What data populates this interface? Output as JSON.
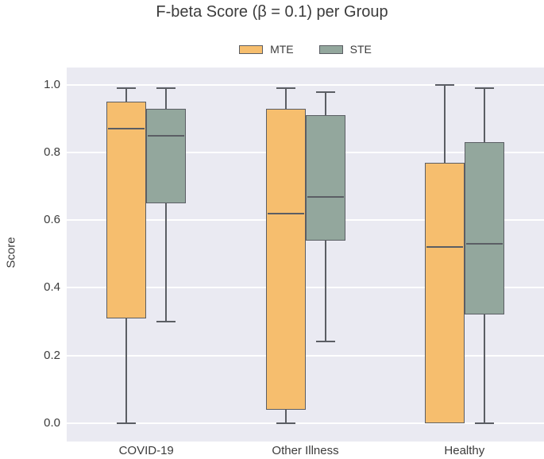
{
  "title": "F-beta Score (β = 0.1) per Group",
  "chart_data": {
    "type": "boxplot",
    "title": "F-beta Score (β = 0.1) per Group",
    "ylabel": "Score",
    "xlabel": "",
    "categories": [
      "COVID-19",
      "Other Illness",
      "Healthy"
    ],
    "series": [
      {
        "name": "MTE",
        "color": "#F6BE6E",
        "boxes": [
          {
            "category": "COVID-19",
            "min": 0.0,
            "q1": 0.31,
            "median": 0.87,
            "q3": 0.95,
            "max": 0.99
          },
          {
            "category": "Other Illness",
            "min": 0.0,
            "q1": 0.04,
            "median": 0.62,
            "q3": 0.93,
            "max": 0.99
          },
          {
            "category": "Healthy",
            "min": 0.0,
            "q1": 0.0,
            "median": 0.52,
            "q3": 0.77,
            "max": 1.0
          }
        ]
      },
      {
        "name": "STE",
        "color": "#93A79D",
        "boxes": [
          {
            "category": "COVID-19",
            "min": 0.3,
            "q1": 0.65,
            "median": 0.85,
            "q3": 0.93,
            "max": 0.99
          },
          {
            "category": "Other Illness",
            "min": 0.24,
            "q1": 0.54,
            "median": 0.67,
            "q3": 0.91,
            "max": 0.98
          },
          {
            "category": "Healthy",
            "min": 0.0,
            "q1": 0.32,
            "median": 0.53,
            "q3": 0.83,
            "max": 0.99
          }
        ]
      }
    ],
    "yticks": [
      1.0,
      0.8,
      0.6,
      0.4,
      0.2,
      0.0
    ],
    "ylim": [
      -0.055,
      1.052
    ],
    "grid": true,
    "legend_position": "top center",
    "colors": {
      "plot_background": "#EAEAF2",
      "grid": "#FFFFFF",
      "box_edge": "#5B5E64",
      "text": "#3C3C3C",
      "mte_fill": "#F6BE6E",
      "ste_fill": "#93A79D"
    }
  }
}
